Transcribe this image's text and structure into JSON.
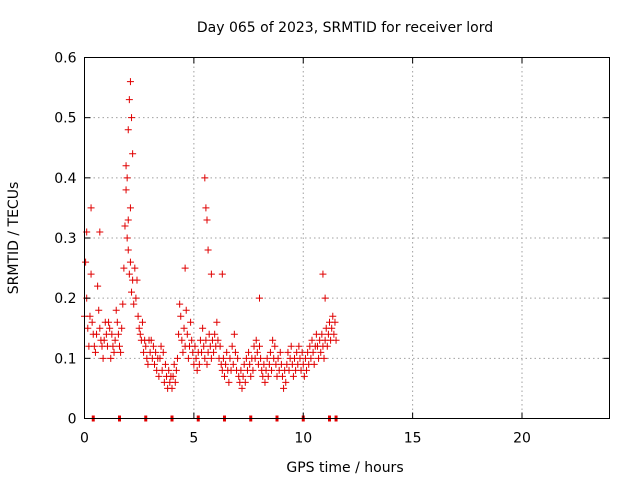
{
  "chart_data": {
    "type": "scatter",
    "title": "Day 065 of 2023, SRMTID for receiver lord",
    "xlabel": "GPS time / hours",
    "ylabel": "SRMTID / TECUs",
    "xlim": [
      0,
      24
    ],
    "ylim": [
      0,
      0.6
    ],
    "xticks": [
      0,
      5,
      10,
      15,
      20
    ],
    "xtick_labels": [
      "0",
      "5",
      "10",
      "15",
      "20"
    ],
    "yticks": [
      0,
      0.1,
      0.2,
      0.3,
      0.4,
      0.5,
      0.6
    ],
    "ytick_labels": [
      "0",
      "0.1",
      "0.2",
      "0.3",
      "0.4",
      "0.5",
      "0.6"
    ],
    "grid": true,
    "series": [
      {
        "name": "SRMTID",
        "marker": "+",
        "color": "#e00000",
        "x": [
          0.0,
          0.05,
          0.1,
          0.15,
          0.2,
          0.25,
          0.3,
          0.35,
          0.4,
          0.45,
          0.5,
          0.55,
          0.6,
          0.65,
          0.7,
          0.75,
          0.8,
          0.85,
          0.9,
          0.95,
          1.0,
          1.05,
          1.1,
          1.15,
          1.2,
          1.25,
          1.3,
          1.35,
          1.4,
          1.45,
          1.5,
          1.55,
          1.6,
          1.65,
          1.7,
          1.75,
          1.8,
          1.85,
          1.9,
          1.95,
          2.0,
          2.05,
          2.1,
          2.15,
          2.2,
          2.25,
          2.3,
          2.35,
          2.4,
          2.45,
          2.5,
          2.55,
          2.6,
          2.65,
          2.7,
          2.75,
          2.8,
          2.85,
          2.9,
          2.95,
          3.0,
          3.05,
          3.1,
          3.15,
          3.2,
          3.25,
          3.3,
          3.35,
          3.4,
          3.45,
          3.5,
          3.55,
          3.6,
          3.65,
          3.7,
          3.75,
          3.8,
          3.85,
          3.9,
          3.95,
          4.0,
          4.05,
          4.1,
          4.15,
          4.2,
          4.25,
          4.3,
          4.35,
          4.4,
          4.45,
          4.5,
          4.55,
          4.6,
          4.65,
          4.7,
          4.75,
          4.8,
          4.85,
          4.9,
          4.95,
          5.0,
          5.05,
          5.1,
          5.15,
          5.2,
          5.25,
          5.3,
          5.35,
          5.4,
          5.45,
          5.5,
          5.55,
          5.6,
          5.65,
          5.7,
          5.75,
          5.8,
          5.85,
          5.9,
          5.95,
          6.0,
          6.05,
          6.1,
          6.15,
          6.2,
          6.25,
          6.3,
          6.35,
          6.4,
          6.45,
          6.5,
          6.55,
          6.6,
          6.65,
          6.7,
          6.75,
          6.8,
          6.85,
          6.9,
          6.95,
          7.0,
          7.05,
          7.1,
          7.15,
          7.2,
          7.25,
          7.3,
          7.35,
          7.4,
          7.45,
          7.5,
          7.55,
          7.6,
          7.65,
          7.7,
          7.75,
          7.8,
          7.85,
          7.9,
          7.95,
          8.0,
          8.05,
          8.1,
          8.15,
          8.2,
          8.25,
          8.3,
          8.35,
          8.4,
          8.45,
          8.5,
          8.55,
          8.6,
          8.65,
          8.7,
          8.75,
          8.8,
          8.85,
          8.9,
          8.95,
          9.0,
          9.05,
          9.1,
          9.15,
          9.2,
          9.25,
          9.3,
          9.35,
          9.4,
          9.45,
          9.5,
          9.55,
          9.6,
          9.65,
          9.7,
          9.75,
          9.8,
          9.85,
          9.9,
          9.95,
          10.0,
          10.05,
          10.1,
          10.15,
          10.2,
          10.25,
          10.3,
          10.35,
          10.4,
          10.45,
          10.5,
          10.55,
          10.6,
          10.65,
          10.7,
          10.75,
          10.8,
          10.85,
          10.9,
          10.95,
          11.0,
          11.05,
          11.1,
          11.15,
          11.2,
          11.25,
          11.3,
          11.35,
          11.4,
          11.45,
          11.5,
          0.1,
          0.3,
          0.7,
          1.9,
          2.0,
          2.05,
          2.1,
          2.15,
          2.2,
          2.1,
          2.0,
          1.95,
          5.5,
          5.55,
          5.6,
          5.65,
          4.6,
          5.8,
          6.3,
          8.0,
          10.9,
          11.0
        ],
        "y": [
          0.17,
          0.26,
          0.2,
          0.15,
          0.12,
          0.17,
          0.24,
          0.16,
          0.14,
          0.12,
          0.11,
          0.14,
          0.22,
          0.18,
          0.15,
          0.13,
          0.12,
          0.1,
          0.13,
          0.16,
          0.14,
          0.12,
          0.16,
          0.15,
          0.1,
          0.14,
          0.12,
          0.11,
          0.13,
          0.18,
          0.16,
          0.14,
          0.12,
          0.11,
          0.15,
          0.19,
          0.25,
          0.32,
          0.38,
          0.3,
          0.28,
          0.24,
          0.26,
          0.21,
          0.23,
          0.19,
          0.25,
          0.2,
          0.23,
          0.17,
          0.15,
          0.14,
          0.13,
          0.16,
          0.11,
          0.13,
          0.12,
          0.1,
          0.09,
          0.13,
          0.11,
          0.13,
          0.1,
          0.12,
          0.09,
          0.11,
          0.08,
          0.1,
          0.07,
          0.1,
          0.12,
          0.08,
          0.11,
          0.06,
          0.09,
          0.07,
          0.05,
          0.08,
          0.06,
          0.07,
          0.05,
          0.07,
          0.09,
          0.06,
          0.08,
          0.1,
          0.14,
          0.19,
          0.17,
          0.13,
          0.11,
          0.15,
          0.12,
          0.18,
          0.14,
          0.1,
          0.12,
          0.16,
          0.13,
          0.11,
          0.09,
          0.12,
          0.1,
          0.08,
          0.11,
          0.09,
          0.13,
          0.11,
          0.15,
          0.12,
          0.1,
          0.13,
          0.09,
          0.11,
          0.14,
          0.12,
          0.1,
          0.13,
          0.11,
          0.14,
          0.12,
          0.16,
          0.13,
          0.1,
          0.12,
          0.09,
          0.08,
          0.1,
          0.07,
          0.09,
          0.11,
          0.08,
          0.06,
          0.1,
          0.08,
          0.12,
          0.09,
          0.14,
          0.11,
          0.08,
          0.1,
          0.07,
          0.06,
          0.08,
          0.05,
          0.07,
          0.09,
          0.06,
          0.1,
          0.08,
          0.11,
          0.09,
          0.07,
          0.1,
          0.08,
          0.12,
          0.1,
          0.13,
          0.11,
          0.09,
          0.12,
          0.1,
          0.08,
          0.07,
          0.09,
          0.06,
          0.08,
          0.1,
          0.07,
          0.09,
          0.11,
          0.08,
          0.13,
          0.1,
          0.12,
          0.09,
          0.07,
          0.1,
          0.08,
          0.11,
          0.09,
          0.07,
          0.05,
          0.08,
          0.06,
          0.09,
          0.11,
          0.08,
          0.1,
          0.12,
          0.09,
          0.07,
          0.1,
          0.08,
          0.11,
          0.09,
          0.12,
          0.1,
          0.08,
          0.11,
          0.09,
          0.07,
          0.1,
          0.08,
          0.11,
          0.09,
          0.12,
          0.1,
          0.13,
          0.11,
          0.09,
          0.12,
          0.14,
          0.12,
          0.1,
          0.13,
          0.11,
          0.14,
          0.12,
          0.1,
          0.13,
          0.15,
          0.12,
          0.14,
          0.16,
          0.13,
          0.15,
          0.17,
          0.14,
          0.16,
          0.13,
          0.31,
          0.35,
          0.31,
          0.42,
          0.48,
          0.53,
          0.56,
          0.5,
          0.44,
          0.35,
          0.33,
          0.4,
          0.4,
          0.35,
          0.33,
          0.28,
          0.25,
          0.24,
          0.24,
          0.2,
          0.24,
          0.2
        ]
      }
    ],
    "data_gap_markers": {
      "y": 0,
      "x": [
        0.4,
        1.6,
        2.8,
        4.0,
        5.2,
        6.4,
        7.6,
        8.8,
        10.0,
        11.5,
        11.2
      ]
    }
  }
}
